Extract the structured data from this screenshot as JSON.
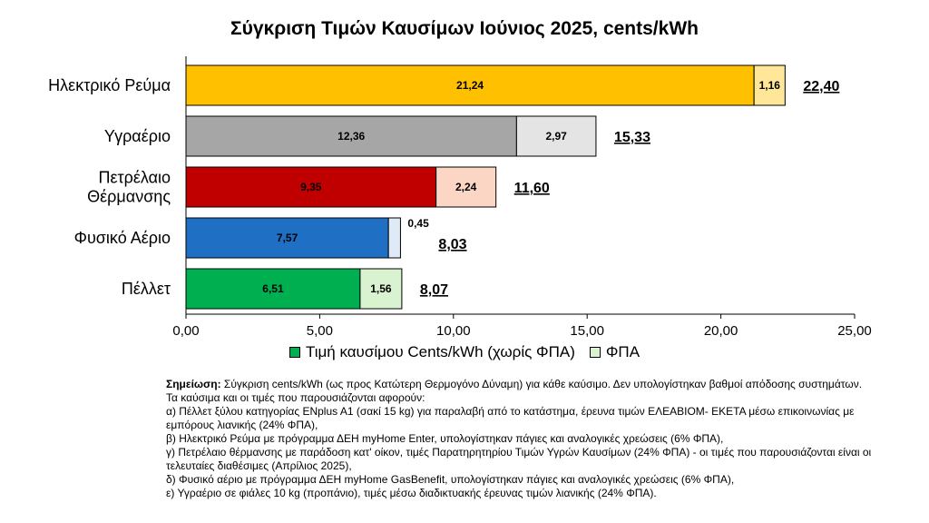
{
  "chart_data": {
    "type": "bar",
    "orientation": "horizontal",
    "stacked": true,
    "title": "Σύγκριση Τιμών Καυσίμων Ιούνιος 2025, cents/kWh",
    "categories": [
      "Ηλεκτρικό Ρεύμα",
      "Υγραέριο",
      "Πετρέλαιο Θέρμανσης",
      "Φυσικό Αέριο",
      "Πέλλετ"
    ],
    "category_label_lines": [
      [
        "Ηλεκτρικό Ρεύμα"
      ],
      [
        "Υγραέριο"
      ],
      [
        "Πετρέλαιο",
        "Θέρμανσης"
      ],
      [
        "Φυσικό Αέριο"
      ],
      [
        "Πέλλετ"
      ]
    ],
    "series": [
      {
        "name": "Τιμή καυσίμου Cents/kWh (χωρίς ΦΠΑ)",
        "values": [
          21.24,
          12.36,
          9.35,
          7.57,
          6.51
        ],
        "labels": [
          "21,24",
          "12,36",
          "9,35",
          "7,57",
          "6,51"
        ]
      },
      {
        "name": "ΦΠΑ",
        "values": [
          1.16,
          2.97,
          2.24,
          0.45,
          1.56
        ],
        "labels": [
          "1,16",
          "2,97",
          "2,24",
          "0,45",
          "1,56"
        ]
      }
    ],
    "totals": [
      "22,40",
      "15,33",
      "11,60",
      "8,03",
      "8,07"
    ],
    "xlim": [
      0,
      25
    ],
    "xticks": [
      "0,00",
      "5,00",
      "10,00",
      "15,00",
      "20,00",
      "25,00"
    ],
    "grid": false,
    "legend_position": "bottom",
    "base_colors": [
      "#ffc000",
      "#a6a6a6",
      "#c00000",
      "#1f6fc4",
      "#00b050"
    ],
    "vat_colors": [
      "#ffe699",
      "#e4e4e4",
      "#fbd6c5",
      "#deebf7",
      "#d9f2d0"
    ],
    "legend_base_color": "#00b050",
    "legend_vat_color": "#d9f2d0"
  },
  "notes": {
    "heading": "Σημείωση:",
    "intro": " Σύγκριση cents/kWh (ως προς Κατώτερη Θερμογόνο Δύναμη) για κάθε καύσιμο. Δεν υπολογίστηκαν βαθμοί απόδοσης συστημάτων. Τα καύσιμα και οι τιμές που παρουσιάζονται αφορούν:",
    "items": [
      "α) Πέλλετ ξύλου κατηγορίας ENplus A1 (σακί 15 kg) για παραλαβή από το κατάστημα, έρευνα τιμών ΕΛΕΑΒΙΟΜ- ΕΚΕΤΑ μέσω επικοινωνίας με εμπόρους λιανικής (24% ΦΠΑ),",
      "β) Ηλεκτρικό Ρεύμα με πρόγραμμα ΔΕΗ myHome Enter, υπολογίστηκαν πάγιες και αναλογικές χρεώσεις (6% ΦΠΑ),",
      "γ) Πετρέλαιο θέρμανσης με παράδοση κατ' οίκον, τιμές Παρατηρητηρίου Τιμών Υγρών Καυσίμων (24% ΦΠΑ) - οι τιμές που παρουσιάζονται είναι οι τελευταίες διαθέσιμες (Απρίλιος 2025),",
      "δ) Φυσικό αέριο με πρόγραμμα ΔΕΗ myHome GasBenefit, υπολογίστηκαν πάγιες και αναλογικές χρεώσεις (6% ΦΠΑ),",
      "ε) Υγραέριο σε φιάλες 10 kg (προπάνιο), τιμές μέσω διαδικτυακής έρευνας τιμών λιανικής (24% ΦΠΑ)."
    ]
  }
}
